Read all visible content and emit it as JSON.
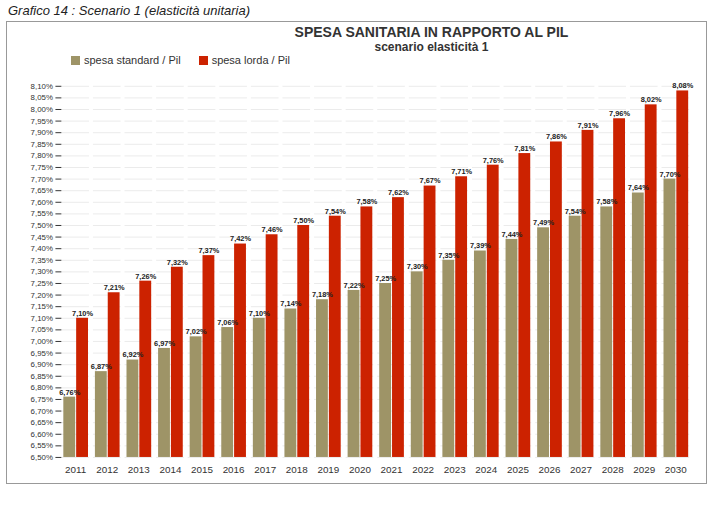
{
  "chart_data": {
    "type": "bar",
    "caption": "Grafico 14 : Scenario 1 (elasticità unitaria)",
    "title": "SPESA SANITARIA IN RAPPORTO AL PIL",
    "subtitle": "scenario elasticità 1",
    "categories": [
      "2011",
      "2012",
      "2013",
      "2014",
      "2015",
      "2016",
      "2017",
      "2018",
      "2019",
      "2020",
      "2021",
      "2022",
      "2023",
      "2024",
      "2025",
      "2026",
      "2027",
      "2028",
      "2029",
      "2030"
    ],
    "series": [
      {
        "name": "spesa standard / Pil",
        "color": "#9e9467",
        "values": [
          6.76,
          6.87,
          6.92,
          6.97,
          7.02,
          7.06,
          7.1,
          7.14,
          7.18,
          7.22,
          7.25,
          7.3,
          7.35,
          7.39,
          7.44,
          7.49,
          7.54,
          7.58,
          7.64,
          7.7
        ],
        "value_labels": [
          "6,76%",
          "6,87%",
          "6,92%",
          "6,97%",
          "7,02%",
          "7,06%",
          "7,10%",
          "7,14%",
          "7,18%",
          "7,22%",
          "7,25%",
          "7,30%",
          "7,35%",
          "7,39%",
          "7,44%",
          "7,49%",
          "7,54%",
          "7,58%",
          "7,64%",
          "7,70%"
        ]
      },
      {
        "name": "spesa lorda / Pil",
        "color": "#cc2200",
        "values": [
          7.1,
          7.21,
          7.26,
          7.32,
          7.37,
          7.42,
          7.46,
          7.5,
          7.54,
          7.58,
          7.62,
          7.67,
          7.71,
          7.76,
          7.81,
          7.86,
          7.91,
          7.96,
          8.02,
          8.08
        ],
        "value_labels": [
          "7,10%",
          "7,21%",
          "7,26%",
          "7,32%",
          "7,37%",
          "7,42%",
          "7,46%",
          "7,50%",
          "7,54%",
          "7,58%",
          "7,62%",
          "7,67%",
          "7,71%",
          "7,76%",
          "7,81%",
          "7,86%",
          "7,91%",
          "7,96%",
          "8,02%",
          "8,08%"
        ]
      }
    ],
    "ylim": [
      6.5,
      8.1
    ],
    "yticks": [
      {
        "value": 6.5,
        "label": "6,50%"
      },
      {
        "value": 6.55,
        "label": "6,55%"
      },
      {
        "value": 6.6,
        "label": "6,60%"
      },
      {
        "value": 6.65,
        "label": "6,65%"
      },
      {
        "value": 6.7,
        "label": "6,70%"
      },
      {
        "value": 6.75,
        "label": "6,75%"
      },
      {
        "value": 6.8,
        "label": "6,80%"
      },
      {
        "value": 6.85,
        "label": "6,85%"
      },
      {
        "value": 6.9,
        "label": "6,90%"
      },
      {
        "value": 6.95,
        "label": "6,95%"
      },
      {
        "value": 7,
        "label": "7,00%"
      },
      {
        "value": 7.05,
        "label": "7,05%"
      },
      {
        "value": 7.1,
        "label": "7,10%"
      },
      {
        "value": 7.15,
        "label": "7,15%"
      },
      {
        "value": 7.2,
        "label": "7,20%"
      },
      {
        "value": 7.25,
        "label": "7,25%"
      },
      {
        "value": 7.3,
        "label": "7,30%"
      },
      {
        "value": 7.35,
        "label": "7,35%"
      },
      {
        "value": 7.4,
        "label": "7,40%"
      },
      {
        "value": 7.45,
        "label": "7,45%"
      },
      {
        "value": 7.5,
        "label": "7,50%"
      },
      {
        "value": 7.55,
        "label": "7,55%"
      },
      {
        "value": 7.6,
        "label": "7,60%"
      },
      {
        "value": 7.65,
        "label": "7,65%"
      },
      {
        "value": 7.7,
        "label": "7,70%"
      },
      {
        "value": 7.75,
        "label": "7,75%"
      },
      {
        "value": 7.8,
        "label": "7,80%"
      },
      {
        "value": 7.85,
        "label": "7,85%"
      },
      {
        "value": 7.9,
        "label": "7,90%"
      },
      {
        "value": 7.95,
        "label": "7,95%"
      },
      {
        "value": 8,
        "label": "8,00%"
      },
      {
        "value": 8.05,
        "label": "8,05%"
      },
      {
        "value": 8.1,
        "label": "8,10%"
      }
    ],
    "grid": true,
    "legend": "top-left",
    "data_labels": true
  }
}
